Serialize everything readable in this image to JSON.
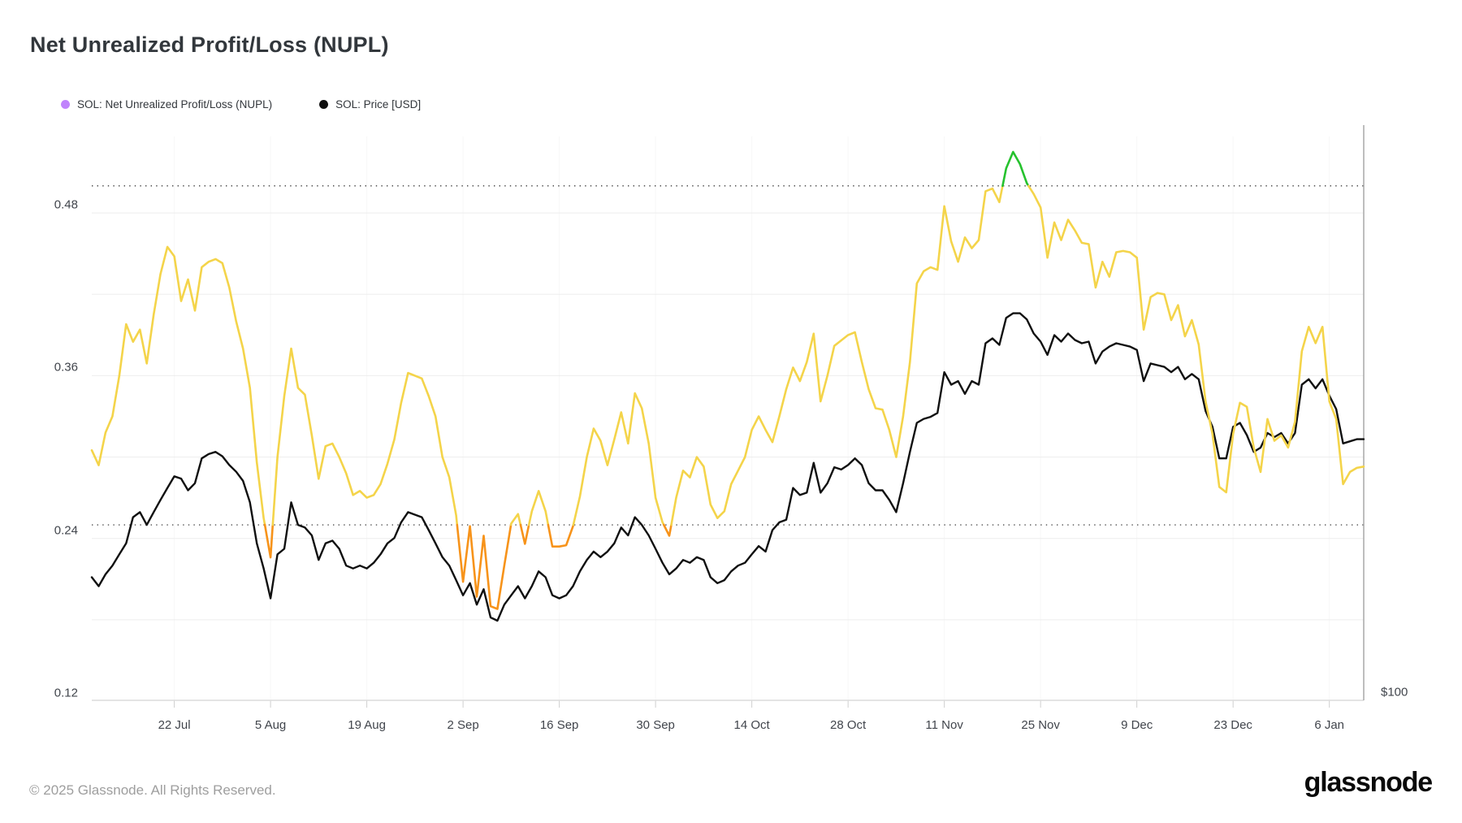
{
  "title": "Net Unrealized Profit/Loss (NUPL)",
  "legend": [
    {
      "label": "SOL: Net Unrealized Profit/Loss (NUPL)",
      "dot_color": "#c084fc"
    },
    {
      "label": "SOL: Price [USD]",
      "dot_color": "#0f0f0f"
    }
  ],
  "footer": {
    "copyright": "© 2025 Glassnode. All Rights Reserved.",
    "brand": "glassnode"
  },
  "chart_data": {
    "type": "line",
    "title": "Net Unrealized Profit/Loss (NUPL)",
    "x_start_date": "10 Jul",
    "x_days": 185,
    "x_tick_days": [
      12,
      26,
      40,
      54,
      68,
      82,
      96,
      110,
      124,
      138,
      152,
      166,
      180
    ],
    "x_tick_labels": [
      "22 Jul",
      "5 Aug",
      "19 Aug",
      "2 Sep",
      "16 Sep",
      "30 Sep",
      "14 Oct",
      "28 Oct",
      "11 Nov",
      "25 Nov",
      "9 Dec",
      "23 Dec",
      "6 Jan"
    ],
    "y_left_ticks": [
      {
        "label": "0.48",
        "value": 0.48
      },
      {
        "label": "0.36",
        "value": 0.36
      },
      {
        "label": "0.24",
        "value": 0.24
      },
      {
        "label": "0.12",
        "value": 0.12
      }
    ],
    "y_right_ticks": [
      {
        "label": "$100",
        "value": 100
      }
    ],
    "gridline_values": [
      0.48,
      0.42,
      0.36,
      0.3,
      0.24,
      0.18
    ],
    "nupl_ylim": [
      0.1206,
      0.5364
    ],
    "price_ylim": [
      100,
      409
    ],
    "price_scale": "log",
    "grid": true,
    "legend_position": "top-left",
    "thresholds": {
      "lower": 0.25,
      "upper": 0.5
    },
    "colors": {
      "nupl_zone_below": "#f7931a",
      "nupl_zone_mid": "#f4d44a",
      "nupl_zone_above": "#26c22e",
      "price": "#101010",
      "grid": "#ededed",
      "vgrid": "#f7f7f7",
      "axis_bottom": "#dcdcdc",
      "axis_right": "#a9a9a9",
      "dotted": "#4d4d4d",
      "tick": "#cfcfcf"
    },
    "series": [
      {
        "name": "SOL: Net Unrealized Profit/Loss (NUPL)",
        "axis": "nupl",
        "values": [
          0.305,
          0.294,
          0.318,
          0.33,
          0.36,
          0.398,
          0.385,
          0.394,
          0.369,
          0.405,
          0.435,
          0.455,
          0.448,
          0.415,
          0.431,
          0.408,
          0.44,
          0.444,
          0.446,
          0.443,
          0.425,
          0.4,
          0.38,
          0.351,
          0.296,
          0.255,
          0.226,
          0.3,
          0.345,
          0.38,
          0.351,
          0.346,
          0.316,
          0.284,
          0.308,
          0.31,
          0.3,
          0.288,
          0.272,
          0.275,
          0.27,
          0.272,
          0.28,
          0.295,
          0.313,
          0.34,
          0.362,
          0.36,
          0.358,
          0.345,
          0.33,
          0.3,
          0.285,
          0.257,
          0.208,
          0.249,
          0.197,
          0.242,
          0.19,
          0.188,
          0.22,
          0.251,
          0.258,
          0.236,
          0.26,
          0.275,
          0.26,
          0.234,
          0.234,
          0.235,
          0.249,
          0.271,
          0.3,
          0.321,
          0.312,
          0.294,
          0.313,
          0.333,
          0.31,
          0.347,
          0.336,
          0.31,
          0.27,
          0.252,
          0.242,
          0.27,
          0.29,
          0.285,
          0.3,
          0.293,
          0.265,
          0.255,
          0.26,
          0.28,
          0.29,
          0.3,
          0.32,
          0.33,
          0.32,
          0.311,
          0.33,
          0.35,
          0.366,
          0.356,
          0.37,
          0.391,
          0.341,
          0.36,
          0.382,
          0.386,
          0.39,
          0.392,
          0.37,
          0.35,
          0.336,
          0.335,
          0.32,
          0.3,
          0.33,
          0.37,
          0.428,
          0.437,
          0.44,
          0.438,
          0.485,
          0.459,
          0.444,
          0.462,
          0.454,
          0.46,
          0.496,
          0.498,
          0.488,
          0.513,
          0.525,
          0.516,
          0.502,
          0.494,
          0.484,
          0.447,
          0.473,
          0.46,
          0.475,
          0.467,
          0.458,
          0.457,
          0.425,
          0.444,
          0.433,
          0.451,
          0.452,
          0.451,
          0.447,
          0.394,
          0.418,
          0.421,
          0.42,
          0.401,
          0.412,
          0.389,
          0.401,
          0.383,
          0.341,
          0.317,
          0.278,
          0.274,
          0.317,
          0.34,
          0.337,
          0.307,
          0.289,
          0.328,
          0.312,
          0.316,
          0.307,
          0.326,
          0.378,
          0.396,
          0.384,
          0.396,
          0.341,
          0.328,
          0.28,
          0.289,
          0.292,
          0.293
        ]
      },
      {
        "name": "SOL: Price [USD]",
        "axis": "price",
        "values": [
          136,
          133,
          137,
          140,
          144,
          148,
          158,
          160,
          155,
          160,
          165,
          170,
          175,
          174,
          169,
          172,
          183,
          185,
          186,
          184,
          180,
          177,
          173,
          164,
          148,
          139,
          129,
          144,
          146,
          164,
          155,
          154,
          151,
          142,
          148,
          149,
          146,
          140,
          139,
          140,
          139,
          141,
          144,
          148,
          150,
          156,
          160,
          159,
          158,
          153,
          148,
          143,
          140,
          135,
          130,
          134,
          127,
          132,
          123,
          122,
          127,
          130,
          133,
          129,
          133,
          138,
          136,
          130,
          129,
          130,
          133,
          138,
          142,
          145,
          143,
          145,
          148,
          154,
          151,
          158,
          155,
          151,
          146,
          141,
          137,
          139,
          142,
          141,
          143,
          142,
          136,
          134,
          135,
          138,
          140,
          141,
          144,
          147,
          145,
          153,
          156,
          157,
          170,
          167,
          168,
          181,
          168,
          172,
          179,
          178,
          180,
          183,
          180,
          172,
          169,
          169,
          165,
          160,
          172,
          186,
          200,
          202,
          203,
          205,
          227,
          220,
          222,
          215,
          222,
          220,
          244,
          247,
          243,
          260,
          263,
          263,
          259,
          250,
          245,
          237,
          249,
          245,
          250,
          246,
          244,
          245,
          232,
          239,
          242,
          244,
          243,
          242,
          240,
          222,
          232,
          231,
          230,
          227,
          230,
          223,
          226,
          223,
          206,
          198,
          183,
          183,
          198,
          200,
          194,
          186,
          188,
          195,
          193,
          195,
          190,
          195,
          220,
          223,
          218,
          223,
          214,
          207,
          190,
          191,
          192,
          192
        ]
      }
    ]
  }
}
